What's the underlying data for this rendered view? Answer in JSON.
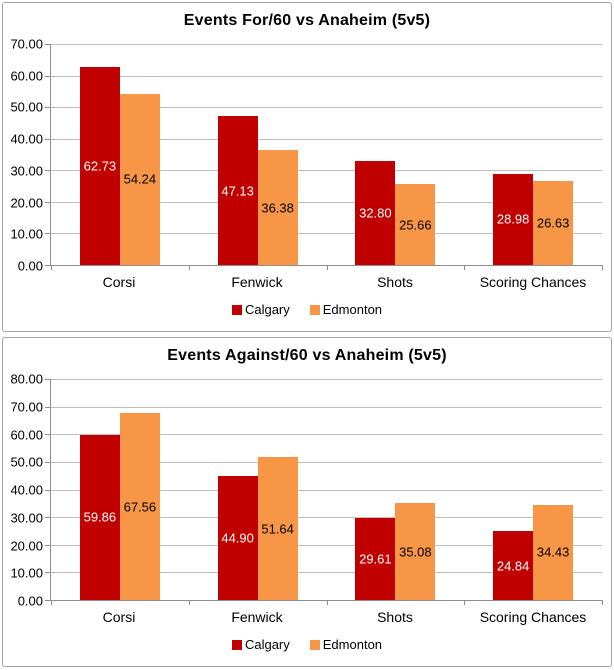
{
  "appearance": {
    "panel_border": "#a6a6a6",
    "axis": "#8e8e8e",
    "gridline": "#bfbfbf",
    "background": "#ffffff",
    "calgary_color": "#c00000",
    "edmonton_color": "#f79646"
  },
  "chart_data": [
    {
      "type": "bar",
      "title": "Events For/60 vs Anaheim (5v5)",
      "categories": [
        "Corsi",
        "Fenwick",
        "Shots",
        "Scoring Chances"
      ],
      "series": [
        {
          "name": "Calgary",
          "color": "#c00000",
          "label_color": "#ffffff",
          "values": [
            62.73,
            47.13,
            32.8,
            28.98
          ]
        },
        {
          "name": "Edmonton",
          "color": "#f79646",
          "label_color": "#000000",
          "values": [
            54.24,
            36.38,
            25.66,
            26.63
          ]
        }
      ],
      "ylim": [
        0,
        70
      ],
      "ystep": 10,
      "y_tick_labels": [
        "70.00",
        "60.00",
        "50.00",
        "40.00",
        "30.00",
        "20.00",
        "10.00",
        "0.00"
      ],
      "grid": true,
      "legend_position": "bottom",
      "legend": [
        "Calgary",
        "Edmonton"
      ]
    },
    {
      "type": "bar",
      "title": "Events Against/60 vs Anaheim (5v5)",
      "categories": [
        "Corsi",
        "Fenwick",
        "Shots",
        "Scoring Chances"
      ],
      "series": [
        {
          "name": "Calgary",
          "color": "#c00000",
          "label_color": "#ffffff",
          "values": [
            59.86,
            44.9,
            29.61,
            24.84
          ]
        },
        {
          "name": "Edmonton",
          "color": "#f79646",
          "label_color": "#000000",
          "values": [
            67.56,
            51.64,
            35.08,
            34.43
          ]
        }
      ],
      "ylim": [
        0,
        80
      ],
      "ystep": 10,
      "y_tick_labels": [
        "80.00",
        "70.00",
        "60.00",
        "50.00",
        "40.00",
        "30.00",
        "20.00",
        "10.00",
        "0.00"
      ],
      "grid": true,
      "legend_position": "bottom",
      "legend": [
        "Calgary",
        "Edmonton"
      ]
    }
  ]
}
